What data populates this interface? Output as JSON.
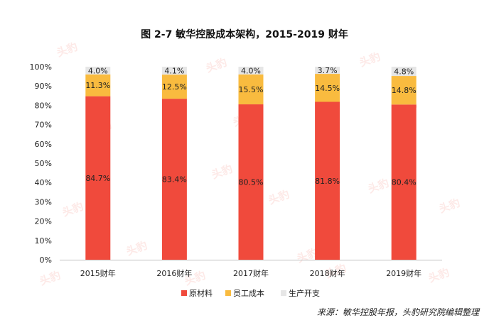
{
  "chart_data": {
    "type": "bar",
    "stacked": true,
    "title": "图 2-7 敏华控股成本架构，2015-2019 财年",
    "categories": [
      "2015财年",
      "2016财年",
      "2017财年",
      "2018财年",
      "2019财年"
    ],
    "series": [
      {
        "name": "原材料",
        "color": "#f04a3c",
        "values": [
          84.7,
          83.4,
          80.5,
          81.8,
          80.4
        ],
        "labels": [
          "84.7%",
          "83.4%",
          "80.5%",
          "81.8%",
          "80.4%"
        ]
      },
      {
        "name": "员工成本",
        "color": "#f9bb3f",
        "values": [
          11.3,
          12.5,
          15.5,
          14.5,
          14.8
        ],
        "labels": [
          "11.3%",
          "12.5%",
          "15.5%",
          "14.5%",
          "14.8%"
        ]
      },
      {
        "name": "生产开支",
        "color": "#e6e6e6",
        "values": [
          4.0,
          4.1,
          4.0,
          3.7,
          4.8
        ],
        "labels": [
          "4.0%",
          "4.1%",
          "4.0%",
          "3.7%",
          "4.8%"
        ]
      }
    ],
    "yticks": [
      "0%",
      "10%",
      "20%",
      "30%",
      "40%",
      "50%",
      "60%",
      "70%",
      "80%",
      "90%",
      "100%"
    ],
    "ylim": [
      0,
      100
    ],
    "xlabel": "",
    "ylabel": "",
    "legend_position": "bottom-center",
    "grid": false
  },
  "source": "来源：敏华控股年报，头豹研究院编辑整理",
  "watermark": "头豹"
}
